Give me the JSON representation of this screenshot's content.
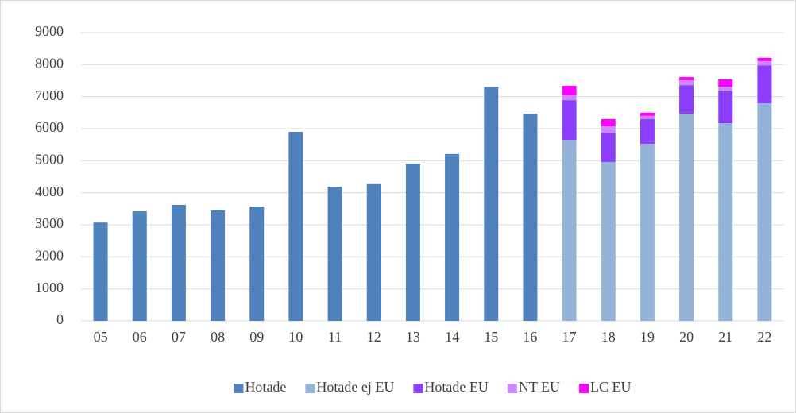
{
  "chart_data": {
    "type": "stacked-bar",
    "categories": [
      "05",
      "06",
      "07",
      "08",
      "09",
      "10",
      "11",
      "12",
      "13",
      "14",
      "15",
      "16",
      "17",
      "18",
      "19",
      "20",
      "21",
      "22"
    ],
    "series": [
      {
        "name": "Hotade",
        "color": "#4f81bd",
        "values": [
          3070,
          3420,
          3620,
          3450,
          3570,
          5900,
          4190,
          4270,
          4910,
          5210,
          7310,
          6470,
          null,
          null,
          null,
          null,
          null,
          null
        ]
      },
      {
        "name": "Hotade ej EU",
        "color": "#95b3d7",
        "values": [
          null,
          null,
          null,
          null,
          null,
          null,
          null,
          null,
          null,
          null,
          null,
          null,
          5650,
          4960,
          5530,
          6470,
          6170,
          6790
        ]
      },
      {
        "name": "Hotade EU",
        "color": "#8b3ffc",
        "values": [
          null,
          null,
          null,
          null,
          null,
          null,
          null,
          null,
          null,
          null,
          null,
          null,
          1240,
          920,
          770,
          890,
          1000,
          1190
        ]
      },
      {
        "name": "NT EU",
        "color": "#cc88ff",
        "values": [
          null,
          null,
          null,
          null,
          null,
          null,
          null,
          null,
          null,
          null,
          null,
          null,
          150,
          190,
          100,
          150,
          140,
          130
        ]
      },
      {
        "name": "LC EU",
        "color": "#ff00ff",
        "values": [
          null,
          null,
          null,
          null,
          null,
          null,
          null,
          null,
          null,
          null,
          null,
          null,
          300,
          230,
          100,
          100,
          230,
          100
        ]
      }
    ],
    "ylim": [
      0,
      9000
    ],
    "yticks": [
      0,
      1000,
      2000,
      3000,
      4000,
      5000,
      6000,
      7000,
      8000,
      9000
    ],
    "grid": true,
    "legend": "bottom"
  }
}
